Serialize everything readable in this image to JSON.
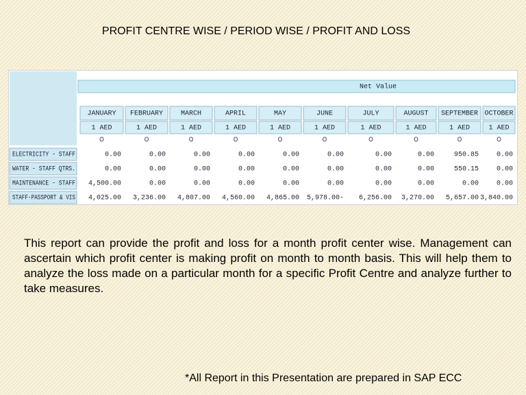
{
  "title": "PROFIT CENTRE WISE / PERIOD WISE / PROFIT AND LOSS",
  "table": {
    "header": "Net Value",
    "months": [
      "JANUARY",
      "FEBRUARY",
      "MARCH",
      "APRIL",
      "MAY",
      "JUNE",
      "JULY",
      "AUGUST",
      "SEPTEMBER",
      "OCTOBER"
    ],
    "units": [
      "1 AED",
      "1 AED",
      "1 AED",
      "1 AED",
      "1 AED",
      "1 AED",
      "1 AED",
      "1 AED",
      "1 AED",
      "1 AED"
    ],
    "rows": [
      {
        "label": "ELECTRICITY - STAFF",
        "values": [
          "0.00",
          "0.00",
          "0.00",
          "0.00",
          "0.00",
          "0.00",
          "0.00",
          "0.00",
          "950.85",
          "0.00"
        ]
      },
      {
        "label": "WATER - STAFF QTRS.",
        "values": [
          "0.00",
          "0.00",
          "0.00",
          "0.00",
          "0.00",
          "0.00",
          "0.00",
          "0.00",
          "550.15",
          "0.00"
        ]
      },
      {
        "label": "MAINTENANCE - STAFF",
        "values": [
          "4,500.00",
          "0.00",
          "0.00",
          "0.00",
          "0.00",
          "0.00",
          "0.00",
          "0.00",
          "0.00",
          "0.00"
        ]
      },
      {
        "label": "STAFF-PASSPORT & VIS",
        "values": [
          "4,025.00",
          "3,236.00",
          "4,807.00",
          "4,560.00",
          "4,865.00",
          "5,978.00-",
          "6,256.00",
          "3,270.00",
          "5,657.00",
          "3,840.00"
        ]
      }
    ]
  },
  "paragraph": "This report can provide the profit and loss for a month profit center wise. Management can ascertain which profit center is making profit on month to month basis.  This will help them to analyze the loss made on a particular month for a specific Profit Centre and analyze further to take measures.",
  "footnote": "*All Report in this Presentation are prepared in SAP ECC"
}
